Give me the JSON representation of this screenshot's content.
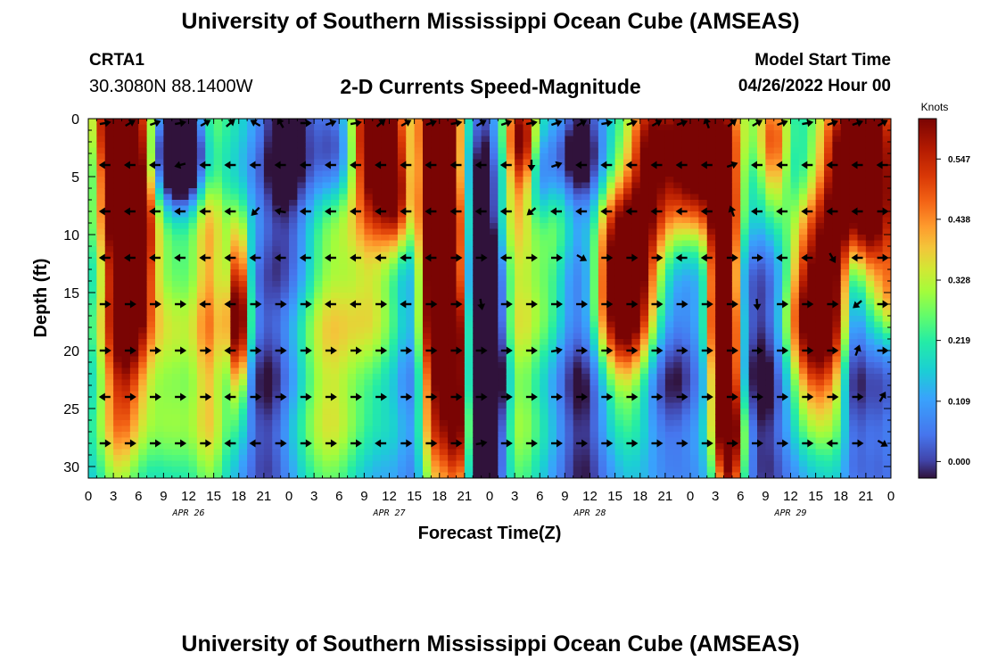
{
  "header": {
    "title": "University of Southern Mississippi Ocean Cube (AMSEAS)",
    "station": "CRTA1",
    "coords": "30.3080N  88.1400W",
    "plot_title": "2-D Currents Speed-Magnitude",
    "model_start_label": "Model Start Time",
    "model_start_value": "04/26/2022 Hour 00"
  },
  "footer": {
    "title": "University of Southern Mississippi Ocean Cube (AMSEAS)"
  },
  "chart_data": {
    "type": "heatmap",
    "title": "2-D Currents Speed-Magnitude",
    "xlabel": "Forecast Time(Z)",
    "ylabel": "Depth (ft)",
    "xlim": [
      0,
      96
    ],
    "ylim": [
      0,
      31
    ],
    "x_tick_labels": [
      "0",
      "3",
      "6",
      "9",
      "12",
      "15",
      "18",
      "21",
      "0",
      "3",
      "6",
      "9",
      "12",
      "15",
      "18",
      "21",
      "0",
      "3",
      "6",
      "9",
      "12",
      "15",
      "18",
      "21",
      "0",
      "3",
      "6",
      "9",
      "12",
      "15",
      "18",
      "21",
      "0"
    ],
    "y_ticks": [
      0,
      5,
      10,
      15,
      20,
      25,
      30
    ],
    "y_tick_labels": [
      "0",
      "5",
      "10",
      "15",
      "20",
      "25",
      "30"
    ],
    "date_labels": [
      {
        "label": "APR 26",
        "hour": 12
      },
      {
        "label": "APR 27",
        "hour": 36
      },
      {
        "label": "APR 28",
        "hour": 60
      },
      {
        "label": "APR 29",
        "hour": 84
      }
    ],
    "colorbar": {
      "label": "Knots",
      "min": -0.03,
      "max": 0.62,
      "ticks": [
        0.0,
        0.109,
        0.219,
        0.328,
        0.438,
        0.547
      ],
      "tick_labels": [
        "0.000",
        "0.109",
        "0.219",
        "0.328",
        "0.438",
        "0.547"
      ]
    },
    "vector_depths_ft": [
      0,
      4,
      8,
      12,
      16,
      20,
      24,
      28
    ],
    "arrow_hours": [
      2,
      5,
      8,
      11,
      14,
      17,
      20,
      23,
      26,
      29,
      32,
      35,
      38,
      41,
      44,
      47,
      50,
      53,
      56,
      59,
      62,
      65,
      68,
      71,
      74,
      77,
      80,
      83,
      86,
      89,
      92,
      95
    ],
    "arrow_angles_deg": [
      [
        10,
        30,
        20,
        10,
        30,
        40,
        150,
        120,
        0,
        20,
        10,
        40,
        30,
        20,
        10,
        30,
        20,
        10,
        20,
        30,
        10,
        20,
        30,
        20,
        110,
        40,
        30,
        20,
        10,
        20,
        20,
        30
      ],
      [
        180,
        180,
        180,
        195,
        180,
        180,
        180,
        180,
        180,
        180,
        180,
        180,
        180,
        180,
        180,
        180,
        180,
        270,
        20,
        180,
        180,
        180,
        180,
        180,
        180,
        20,
        180,
        180,
        180,
        180,
        180,
        180
      ],
      [
        180,
        180,
        180,
        180,
        180,
        180,
        225,
        170,
        180,
        180,
        180,
        180,
        180,
        180,
        180,
        180,
        180,
        220,
        180,
        180,
        180,
        180,
        180,
        180,
        180,
        110,
        180,
        180,
        180,
        180,
        180,
        0
      ],
      [
        180,
        180,
        180,
        180,
        180,
        180,
        180,
        180,
        180,
        180,
        180,
        180,
        180,
        180,
        0,
        0,
        180,
        0,
        0,
        330,
        0,
        0,
        0,
        180,
        180,
        0,
        0,
        180,
        180,
        300,
        180,
        0
      ],
      [
        0,
        0,
        0,
        0,
        180,
        180,
        0,
        0,
        0,
        180,
        180,
        0,
        180,
        0,
        0,
        280,
        0,
        0,
        0,
        0,
        0,
        0,
        0,
        0,
        0,
        0,
        275,
        0,
        0,
        0,
        220,
        0
      ],
      [
        0,
        0,
        0,
        0,
        0,
        180,
        0,
        0,
        0,
        0,
        0,
        0,
        0,
        0,
        0,
        0,
        0,
        0,
        10,
        0,
        0,
        0,
        0,
        0,
        0,
        0,
        0,
        0,
        0,
        0,
        70,
        0
      ],
      [
        180,
        0,
        0,
        0,
        0,
        180,
        0,
        0,
        0,
        0,
        0,
        0,
        0,
        0,
        0,
        0,
        0,
        0,
        0,
        0,
        0,
        0,
        0,
        0,
        0,
        0,
        0,
        0,
        0,
        0,
        0,
        60
      ],
      [
        0,
        0,
        0,
        0,
        0,
        180,
        180,
        0,
        0,
        0,
        0,
        180,
        0,
        0,
        0,
        10,
        0,
        0,
        0,
        0,
        0,
        0,
        0,
        0,
        0,
        0,
        0,
        0,
        0,
        180,
        0,
        330
      ]
    ]
  }
}
